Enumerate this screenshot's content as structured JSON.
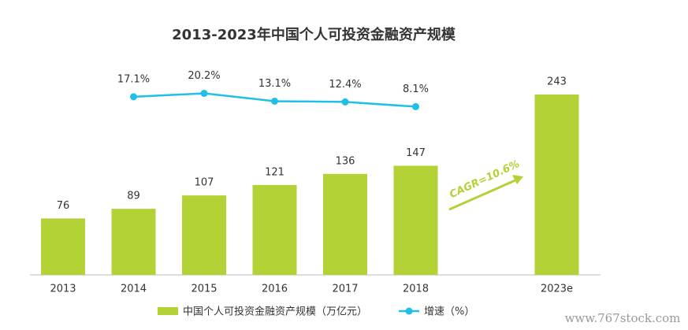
{
  "chart_data": {
    "type": "bar",
    "title": "2013-2023年中国个人可投资金融资产规模",
    "categories": [
      "2013",
      "2014",
      "2015",
      "2016",
      "2017",
      "2018",
      "2023e"
    ],
    "series": [
      {
        "name": "中国个人可投资金融资产规模（万亿元）",
        "type": "bar",
        "color": "#b2d235",
        "values": [
          76,
          89,
          107,
          121,
          136,
          147,
          243
        ]
      },
      {
        "name": "增速（%）",
        "type": "line",
        "axis": "y2",
        "color": "#1fbfe8",
        "values": [
          null,
          17.1,
          20.2,
          13.1,
          12.4,
          8.1,
          null
        ],
        "value_labels": [
          null,
          "17.1%",
          "20.2%",
          "13.1%",
          "12.4%",
          "8.1%",
          null
        ]
      }
    ],
    "ylim": [
      0,
      296
    ],
    "y2lim": [
      -145,
      55
    ],
    "annotation": "CAGR=10.6%",
    "watermark": "www.767stock.com",
    "legend": "bottom"
  }
}
